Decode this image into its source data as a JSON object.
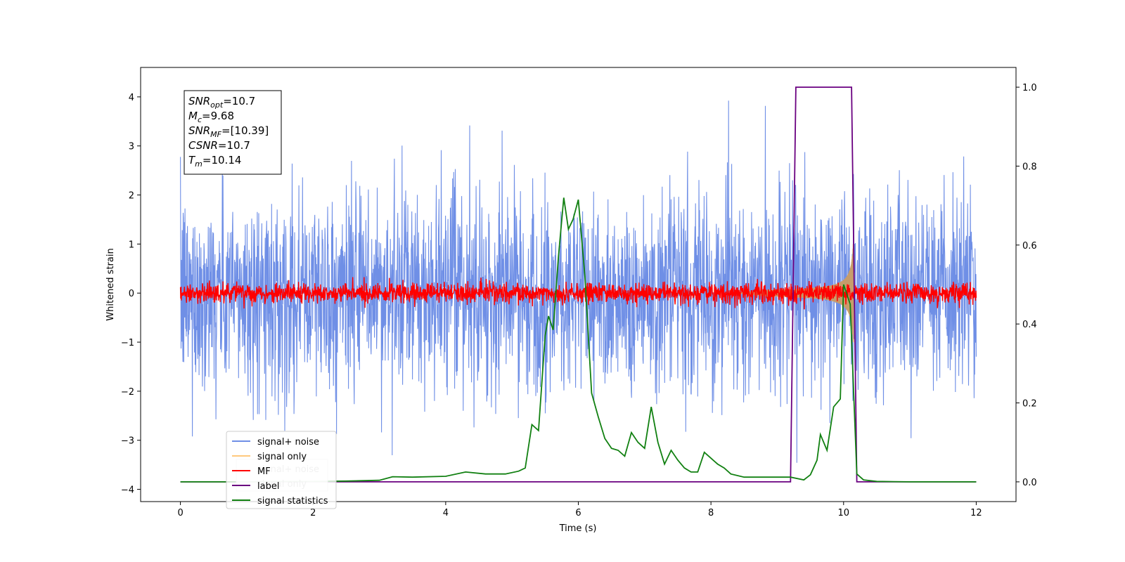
{
  "chart_data": {
    "type": "line",
    "xlabel": "Time (s)",
    "ylabel": "Whitened strain",
    "xlim": [
      -0.6,
      12.6
    ],
    "ylim": [
      -4.25,
      4.6
    ],
    "y2lim": [
      -0.05,
      1.05
    ],
    "x_ticks": [
      0,
      2,
      4,
      6,
      8,
      10,
      12
    ],
    "y_ticks": [
      -4,
      -3,
      -2,
      -1,
      0,
      1,
      2,
      3,
      4
    ],
    "y2_ticks": [
      0.0,
      0.2,
      0.4,
      0.6,
      0.8,
      1.0
    ],
    "annotation": {
      "lines": [
        {
          "var": "SNR",
          "sub": "opt",
          "val": "=10.7"
        },
        {
          "var": "M",
          "sub": "c",
          "val": "=9.68"
        },
        {
          "var": "SNR",
          "sub": "MF",
          "val": "=[10.39]"
        },
        {
          "var": "CSNR",
          "sub": "",
          "val": "=10.7"
        },
        {
          "var": "T",
          "sub": "m",
          "val": "=10.14"
        }
      ]
    },
    "legend": {
      "placement": "lower-left",
      "entries": [
        "signal+ noise",
        "signal only",
        "MF",
        "label",
        "signal statistics"
      ],
      "ghost_entries": [
        "signal+ noise",
        "signal only"
      ]
    },
    "series": [
      {
        "name": "signal+ noise",
        "axis": "left",
        "color": "#6f8fe6",
        "kind": "noise",
        "x_range": [
          0,
          12
        ],
        "sigma": 1.0
      },
      {
        "name": "signal only",
        "axis": "left",
        "color": "#ffb347",
        "kind": "chirp",
        "x_range": [
          8.4,
          10.15
        ],
        "peak_amplitude": 1.0
      },
      {
        "name": "MF",
        "axis": "left",
        "color": "#ff0000",
        "kind": "noise",
        "x_range": [
          0,
          12
        ],
        "sigma": 0.1
      },
      {
        "name": "label",
        "axis": "right",
        "color": "#6a0080",
        "x": [
          0,
          9.2,
          9.28,
          10.12,
          10.2,
          12
        ],
        "y": [
          0,
          0,
          1,
          1,
          0,
          0
        ]
      },
      {
        "name": "signal statistics",
        "axis": "right",
        "color": "#118011",
        "x": [
          0,
          0.5,
          1,
          1.5,
          2,
          2.5,
          3,
          3.2,
          3.5,
          4,
          4.3,
          4.6,
          4.9,
          5.1,
          5.2,
          5.3,
          5.4,
          5.5,
          5.55,
          5.62,
          5.7,
          5.78,
          5.85,
          5.92,
          6,
          6.1,
          6.2,
          6.3,
          6.4,
          6.5,
          6.6,
          6.7,
          6.8,
          6.9,
          7.0,
          7.1,
          7.2,
          7.3,
          7.4,
          7.5,
          7.6,
          7.7,
          7.8,
          7.9,
          8.0,
          8.1,
          8.2,
          8.3,
          8.5,
          8.7,
          9.0,
          9.2,
          9.4,
          9.5,
          9.6,
          9.65,
          9.75,
          9.85,
          9.95,
          10.0,
          10.1,
          10.2,
          10.3,
          10.5,
          11,
          11.5,
          12
        ],
        "y": [
          0,
          0,
          0,
          0.001,
          0.001,
          0.002,
          0.004,
          0.013,
          0.012,
          0.014,
          0.025,
          0.02,
          0.02,
          0.027,
          0.035,
          0.145,
          0.13,
          0.37,
          0.42,
          0.385,
          0.57,
          0.72,
          0.64,
          0.665,
          0.715,
          0.52,
          0.225,
          0.165,
          0.11,
          0.085,
          0.08,
          0.065,
          0.125,
          0.1,
          0.085,
          0.19,
          0.1,
          0.045,
          0.08,
          0.055,
          0.035,
          0.025,
          0.025,
          0.075,
          0.06,
          0.045,
          0.035,
          0.02,
          0.012,
          0.012,
          0.012,
          0.012,
          0.005,
          0.018,
          0.055,
          0.12,
          0.08,
          0.19,
          0.21,
          0.5,
          0.45,
          0.02,
          0.005,
          0.001,
          0,
          0,
          0
        ]
      }
    ]
  }
}
